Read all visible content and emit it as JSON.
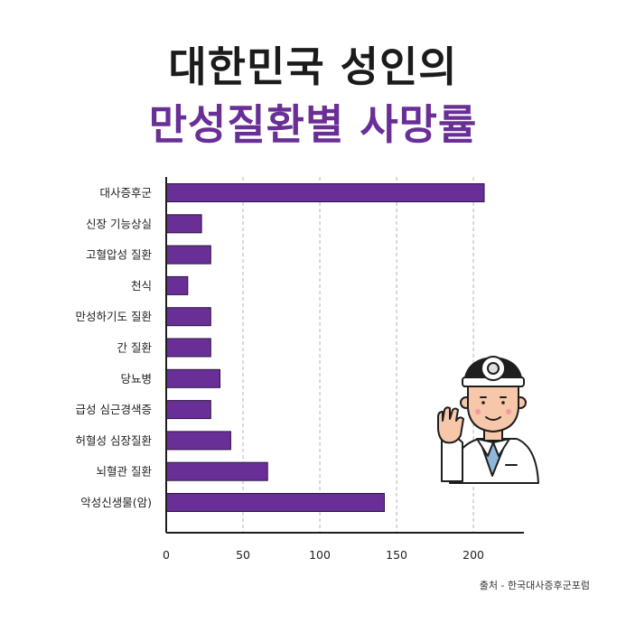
{
  "header": {
    "title_line1": "대한민국 성인의",
    "title_line2": "만성질환별 사망률"
  },
  "colors": {
    "title": "#1b1b1b",
    "accent": "#6a2f96",
    "bar": "#6a2f96"
  },
  "chart_data": {
    "type": "bar",
    "orientation": "horizontal",
    "categories": [
      "대사증후군",
      "신장 기능상실",
      "고혈압성 질환",
      "천식",
      "만성하기도 질환",
      "간 질환",
      "당뇨병",
      "급성 심근경색증",
      "허혈성 심장질환",
      "뇌혈관 질환",
      "악성신생물(암)"
    ],
    "values": [
      207,
      23,
      29,
      14,
      29,
      29,
      35,
      29,
      42,
      66,
      142
    ],
    "xlim": [
      0,
      230
    ],
    "xticks": [
      0,
      50,
      100,
      150,
      200
    ],
    "grid": "vertical-dashed",
    "title": "",
    "xlabel": "",
    "ylabel": ""
  },
  "source": "출처  - 한국대사증후군포럼",
  "illustration": "doctor-raising-hand-icon"
}
